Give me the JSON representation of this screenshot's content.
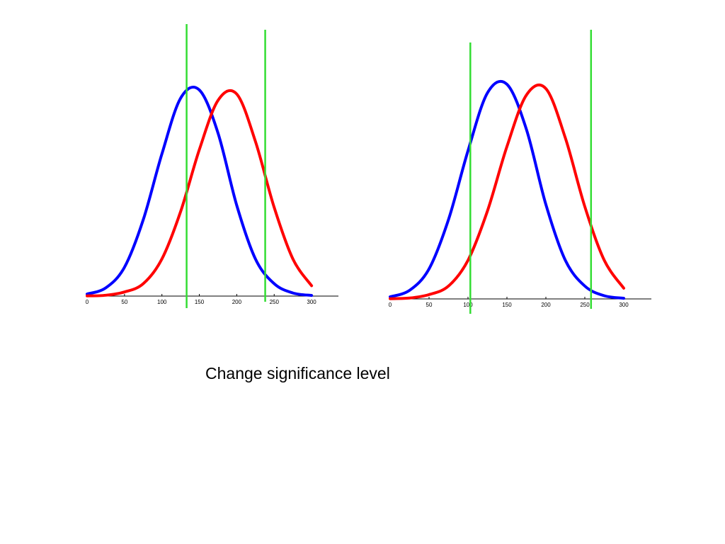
{
  "caption": "Change significance level",
  "colors": {
    "series_1": "#0000ff",
    "series_2": "#ff0000",
    "threshold": "#33dd33",
    "axis": "#000000"
  },
  "chart_data": [
    {
      "type": "line",
      "title": "",
      "xlabel": "",
      "ylabel": "",
      "xlim": [
        0,
        335
      ],
      "xticks": [
        0,
        50,
        100,
        150,
        200,
        250,
        300
      ],
      "grid": false,
      "legend": "none",
      "x": [
        0,
        25,
        50,
        75,
        100,
        125,
        150,
        175,
        200,
        225,
        250,
        275,
        300
      ],
      "series": [
        {
          "color": "blue",
          "values": [
            0.01,
            0.04,
            0.14,
            0.37,
            0.69,
            0.96,
            1.0,
            0.79,
            0.44,
            0.18,
            0.06,
            0.015,
            0.003
          ]
        },
        {
          "color": "red",
          "values": [
            0.001,
            0.004,
            0.02,
            0.06,
            0.18,
            0.41,
            0.71,
            0.95,
            0.98,
            0.75,
            0.43,
            0.18,
            0.05
          ]
        }
      ],
      "vertical_lines": [
        133,
        238
      ]
    },
    {
      "type": "line",
      "title": "",
      "xlabel": "",
      "ylabel": "",
      "xlim": [
        0,
        335
      ],
      "xticks": [
        0,
        50,
        100,
        150,
        200,
        250,
        300
      ],
      "grid": false,
      "legend": "none",
      "x": [
        0,
        25,
        50,
        75,
        100,
        125,
        150,
        175,
        200,
        225,
        250,
        275,
        300
      ],
      "series": [
        {
          "color": "blue",
          "values": [
            0.01,
            0.04,
            0.14,
            0.37,
            0.69,
            0.96,
            1.0,
            0.79,
            0.44,
            0.18,
            0.06,
            0.015,
            0.003
          ]
        },
        {
          "color": "red",
          "values": [
            0.001,
            0.004,
            0.02,
            0.06,
            0.18,
            0.41,
            0.71,
            0.95,
            0.98,
            0.75,
            0.43,
            0.18,
            0.05
          ]
        }
      ],
      "vertical_lines": [
        103,
        258
      ]
    }
  ]
}
